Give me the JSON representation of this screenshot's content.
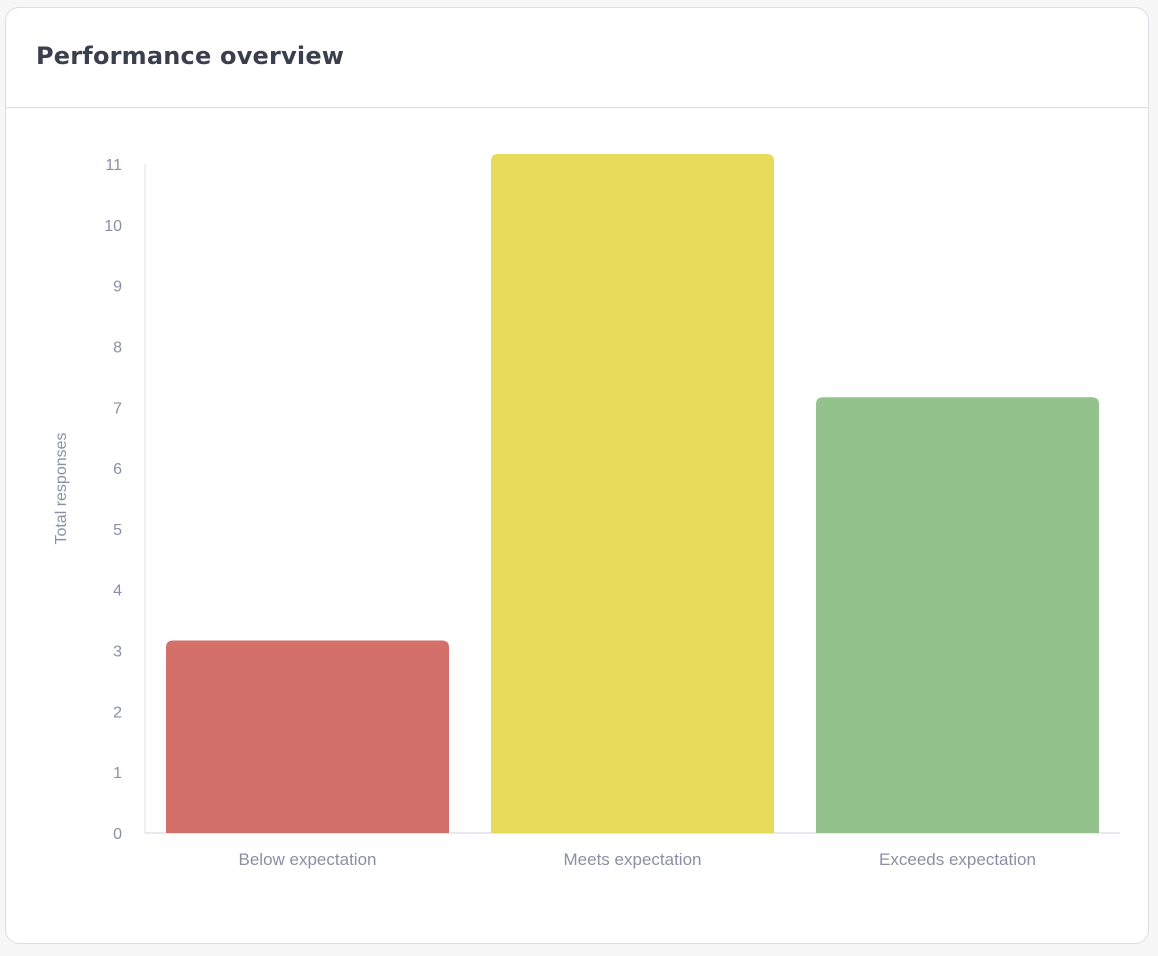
{
  "card": {
    "title": "Performance overview"
  },
  "chart_data": {
    "type": "bar",
    "title": "Performance overview",
    "categories": [
      "Below expectation",
      "Meets expectation",
      "Exceeds expectation"
    ],
    "values": [
      3,
      11,
      7
    ],
    "ylabel": "Total responses",
    "xlabel": "",
    "ylim": [
      0,
      11
    ],
    "yticks": [
      "0",
      "1",
      "2",
      "3",
      "4",
      "5",
      "6",
      "7",
      "8",
      "9",
      "10",
      "11"
    ],
    "colors": [
      "#d4706a",
      "#e7db5c",
      "#94c28d"
    ],
    "grid": false,
    "legend": "none"
  }
}
